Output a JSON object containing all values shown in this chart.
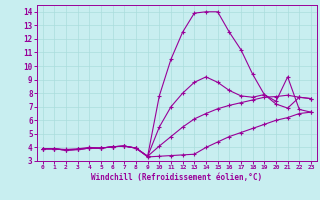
{
  "xlabel": "Windchill (Refroidissement éolien,°C)",
  "bg_color": "#c8eef0",
  "grid_color": "#aadddd",
  "line_color": "#990099",
  "xlim": [
    -0.5,
    23.5
  ],
  "ylim": [
    3,
    14.5
  ],
  "xticks": [
    0,
    1,
    2,
    3,
    4,
    5,
    6,
    7,
    8,
    9,
    10,
    11,
    12,
    13,
    14,
    15,
    16,
    17,
    18,
    19,
    20,
    21,
    22,
    23
  ],
  "yticks": [
    3,
    4,
    5,
    6,
    7,
    8,
    9,
    10,
    11,
    12,
    13,
    14
  ],
  "line1_x": [
    0,
    1,
    2,
    3,
    4,
    5,
    6,
    7,
    8,
    9,
    10,
    11,
    12,
    13,
    14,
    15,
    16,
    17,
    18,
    19,
    20,
    21,
    22,
    23
  ],
  "line1_y": [
    3.9,
    3.9,
    3.85,
    3.9,
    4.0,
    3.95,
    4.05,
    4.1,
    3.95,
    3.3,
    3.35,
    3.4,
    3.45,
    3.5,
    4.0,
    4.4,
    4.8,
    5.1,
    5.4,
    5.7,
    6.0,
    6.2,
    6.5,
    6.6
  ],
  "line2_x": [
    0,
    1,
    2,
    3,
    4,
    5,
    6,
    7,
    8,
    9,
    10,
    11,
    12,
    13,
    14,
    15,
    16,
    17,
    18,
    19,
    20,
    21,
    22,
    23
  ],
  "line2_y": [
    3.9,
    3.9,
    3.8,
    3.85,
    3.95,
    3.95,
    4.05,
    4.1,
    3.95,
    3.35,
    4.1,
    4.8,
    5.5,
    6.1,
    6.5,
    6.85,
    7.1,
    7.3,
    7.5,
    7.7,
    7.75,
    7.85,
    7.7,
    7.6
  ],
  "line3_x": [
    0,
    1,
    2,
    3,
    4,
    5,
    6,
    7,
    8,
    9,
    10,
    11,
    12,
    13,
    14,
    15,
    16,
    17,
    18,
    19,
    20,
    21,
    22,
    23
  ],
  "line3_y": [
    3.9,
    3.9,
    3.8,
    3.85,
    3.95,
    3.95,
    4.05,
    4.1,
    3.95,
    3.35,
    5.5,
    7.0,
    8.0,
    8.8,
    9.2,
    8.8,
    8.2,
    7.8,
    7.7,
    7.9,
    7.4,
    9.2,
    6.8,
    6.6
  ],
  "line4_x": [
    0,
    1,
    2,
    3,
    4,
    5,
    6,
    7,
    8,
    9,
    10,
    11,
    12,
    13,
    14,
    15,
    16,
    17,
    18,
    19,
    20,
    21,
    22,
    23
  ],
  "line4_y": [
    3.9,
    3.9,
    3.8,
    3.85,
    3.95,
    3.95,
    4.05,
    4.1,
    3.95,
    3.35,
    7.8,
    10.5,
    12.5,
    13.9,
    14.0,
    14.0,
    12.5,
    11.2,
    9.4,
    7.9,
    7.2,
    6.9,
    7.7,
    7.6
  ]
}
